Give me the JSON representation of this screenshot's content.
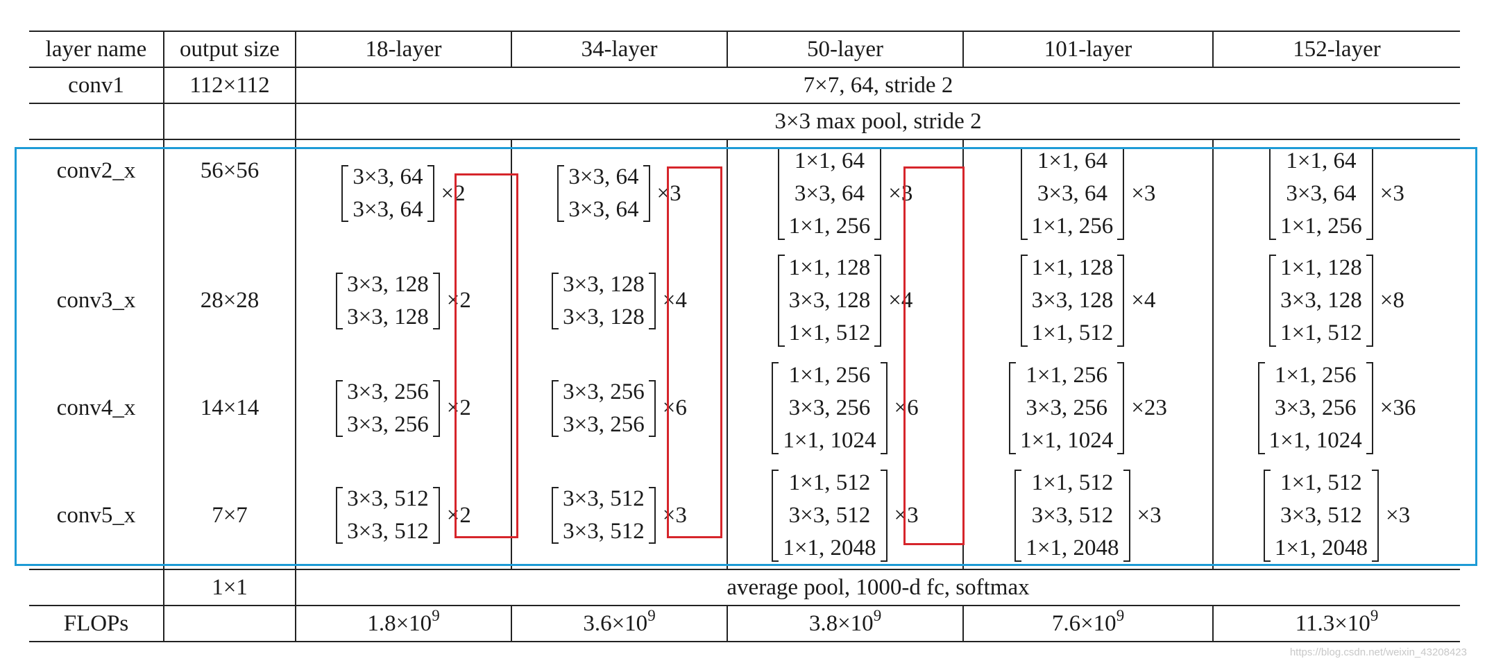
{
  "header": {
    "layer_name": "layer name",
    "output_size": "output size",
    "columns": [
      "18-layer",
      "34-layer",
      "50-layer",
      "101-layer",
      "152-layer"
    ]
  },
  "conv1": {
    "name": "conv1",
    "output": "112×112",
    "spec": "7×7, 64, stride 2"
  },
  "pool": {
    "spec": "3×3 max pool, stride 2"
  },
  "stages": [
    {
      "name": "conv2_x",
      "output": "56×56",
      "blocks": [
        {
          "lines": [
            "3×3, 64",
            "3×3, 64"
          ],
          "repeat": "×2"
        },
        {
          "lines": [
            "3×3, 64",
            "3×3, 64"
          ],
          "repeat": "×3"
        },
        {
          "lines": [
            "1×1, 64",
            "3×3, 64",
            "1×1, 256"
          ],
          "repeat": "×3"
        },
        {
          "lines": [
            "1×1, 64",
            "3×3, 64",
            "1×1, 256"
          ],
          "repeat": "×3"
        },
        {
          "lines": [
            "1×1, 64",
            "3×3, 64",
            "1×1, 256"
          ],
          "repeat": "×3"
        }
      ]
    },
    {
      "name": "conv3_x",
      "output": "28×28",
      "blocks": [
        {
          "lines": [
            "3×3, 128",
            "3×3, 128"
          ],
          "repeat": "×2"
        },
        {
          "lines": [
            "3×3, 128",
            "3×3, 128"
          ],
          "repeat": "×4"
        },
        {
          "lines": [
            "1×1, 128",
            "3×3, 128",
            "1×1, 512"
          ],
          "repeat": "×4"
        },
        {
          "lines": [
            "1×1, 128",
            "3×3, 128",
            "1×1, 512"
          ],
          "repeat": "×4"
        },
        {
          "lines": [
            "1×1, 128",
            "3×3, 128",
            "1×1, 512"
          ],
          "repeat": "×8"
        }
      ]
    },
    {
      "name": "conv4_x",
      "output": "14×14",
      "blocks": [
        {
          "lines": [
            "3×3, 256",
            "3×3, 256"
          ],
          "repeat": "×2"
        },
        {
          "lines": [
            "3×3, 256",
            "3×3, 256"
          ],
          "repeat": "×6"
        },
        {
          "lines": [
            "1×1, 256",
            "3×3, 256",
            "1×1, 1024"
          ],
          "repeat": "×6"
        },
        {
          "lines": [
            "1×1, 256",
            "3×3, 256",
            "1×1, 1024"
          ],
          "repeat": "×23"
        },
        {
          "lines": [
            "1×1, 256",
            "3×3, 256",
            "1×1, 1024"
          ],
          "repeat": "×36"
        }
      ]
    },
    {
      "name": "conv5_x",
      "output": "7×7",
      "blocks": [
        {
          "lines": [
            "3×3, 512",
            "3×3, 512"
          ],
          "repeat": "×2"
        },
        {
          "lines": [
            "3×3, 512",
            "3×3, 512"
          ],
          "repeat": "×3"
        },
        {
          "lines": [
            "1×1, 512",
            "3×3, 512",
            "1×1, 2048"
          ],
          "repeat": "×3"
        },
        {
          "lines": [
            "1×1, 512",
            "3×3, 512",
            "1×1, 2048"
          ],
          "repeat": "×3"
        },
        {
          "lines": [
            "1×1, 512",
            "3×3, 512",
            "1×1, 2048"
          ],
          "repeat": "×3"
        }
      ]
    }
  ],
  "avg": {
    "output": "1×1",
    "spec": "average pool, 1000-d fc, softmax"
  },
  "flops": {
    "label": "FLOPs",
    "values": [
      {
        "mantissa": "1.8×10",
        "exp": "9"
      },
      {
        "mantissa": "3.6×10",
        "exp": "9"
      },
      {
        "mantissa": "3.8×10",
        "exp": "9"
      },
      {
        "mantissa": "7.6×10",
        "exp": "9"
      },
      {
        "mantissa": "11.3×10",
        "exp": "9"
      }
    ]
  },
  "watermark": "https://blog.csdn.net/weixin_43208423"
}
